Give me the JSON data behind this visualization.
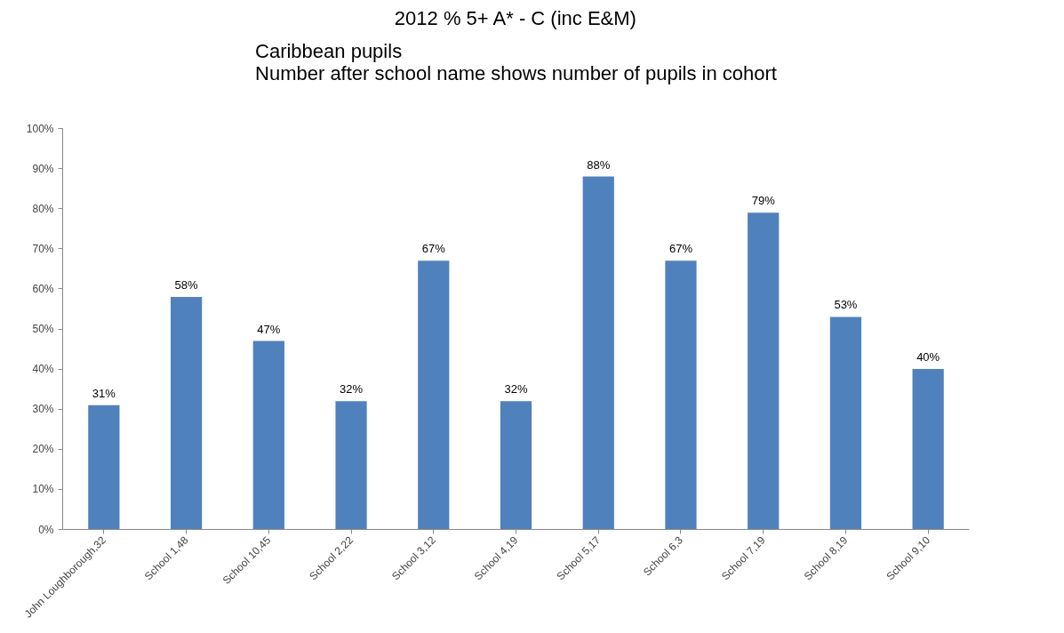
{
  "chart_data": {
    "type": "bar",
    "title": "2012 % 5+ A* - C (inc E&M)",
    "subtitle": "Caribbean pupils\nNumber after school name shows number of pupils in cohort",
    "categories": [
      "John Loughborough,32",
      "School 1,48",
      "School 10,45",
      "School 2,22",
      "School 3,12",
      "School 4,19",
      "School 5,17",
      "School 6,3",
      "School 7,19",
      "School 8,19",
      "School 9,10"
    ],
    "values": [
      31,
      58,
      47,
      32,
      67,
      32,
      88,
      67,
      79,
      53,
      40
    ],
    "color": "#4f81bd",
    "value_labels": [
      "31%",
      "58%",
      "47%",
      "32%",
      "67%",
      "32%",
      "88%",
      "67%",
      "79%",
      "53%",
      "40%"
    ],
    "ylim": [
      0,
      100
    ],
    "yticks": [
      {
        "value": 0,
        "label": "0%"
      },
      {
        "value": 10,
        "label": "10%"
      },
      {
        "value": 20,
        "label": "20%"
      },
      {
        "value": 30,
        "label": "30%"
      },
      {
        "value": 40,
        "label": "40%"
      },
      {
        "value": 50,
        "label": "50%"
      },
      {
        "value": 60,
        "label": "60%"
      },
      {
        "value": 70,
        "label": "70%"
      },
      {
        "value": 80,
        "label": "80%"
      },
      {
        "value": 90,
        "label": "90%"
      },
      {
        "value": 100,
        "label": "100%"
      }
    ],
    "grid": false
  }
}
